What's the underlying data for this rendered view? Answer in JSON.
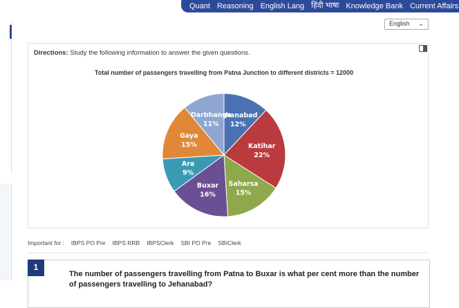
{
  "nav": {
    "items": [
      "Quant",
      "Reasoning",
      "English Lang",
      "हिंदी भाषा",
      "Knowledge Bank",
      "Current Affairs"
    ]
  },
  "language_select": "English",
  "directions": {
    "label": "Directions:",
    "text": "Study the following information to answer the given questions."
  },
  "chart_data": {
    "type": "pie",
    "title": "Total number of passengers travelling from Patna Junction to different districts = 12000",
    "categories": [
      "Jehanabad",
      "Katihar",
      "Saharsa",
      "Buxar",
      "Ara",
      "Gaya",
      "Darbhanga"
    ],
    "values": [
      12,
      22,
      15,
      16,
      9,
      15,
      11
    ],
    "value_labels": [
      "12%",
      "22%",
      "15%",
      "16%",
      "9%",
      "15%",
      "11%"
    ],
    "colors": [
      "#4a72b2",
      "#b93b3d",
      "#8ea84b",
      "#6a4f95",
      "#3b9ab3",
      "#e08838",
      "#8fa7d0"
    ]
  },
  "important": {
    "label": "Important for :",
    "links": [
      "IBPS PO Pre",
      "IBPS RRB",
      "IBPSClerk",
      "SBI PO Pre",
      "SBIClerk"
    ]
  },
  "question": {
    "number": "1",
    "text": "The number of passengers travelling from Patna to Buxar is what per cent more than the number of passengers travelling to Jehanabad?"
  }
}
